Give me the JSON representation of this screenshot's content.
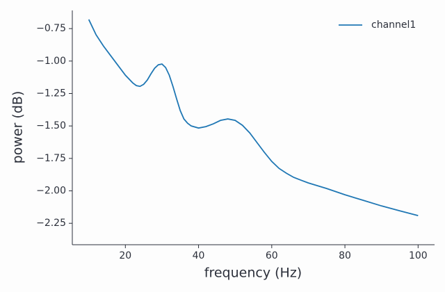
{
  "chart_data": {
    "type": "line",
    "xlabel": "frequency (Hz)",
    "ylabel": "power (dB)",
    "x": [
      10,
      12,
      14,
      16,
      18,
      20,
      22,
      23,
      24,
      25,
      26,
      27,
      28,
      29,
      30,
      31,
      32,
      33,
      34,
      35,
      36,
      37,
      38,
      40,
      42,
      44,
      46,
      48,
      50,
      52,
      54,
      56,
      58,
      60,
      62,
      64,
      66,
      68,
      70,
      75,
      80,
      85,
      90,
      95,
      100
    ],
    "series": [
      {
        "name": "channel1",
        "color": "#1f77b4",
        "values": [
          -0.68,
          -0.798,
          -0.884,
          -0.959,
          -1.034,
          -1.109,
          -1.168,
          -1.189,
          -1.195,
          -1.179,
          -1.146,
          -1.098,
          -1.055,
          -1.029,
          -1.023,
          -1.05,
          -1.109,
          -1.195,
          -1.291,
          -1.382,
          -1.446,
          -1.479,
          -1.5,
          -1.516,
          -1.505,
          -1.484,
          -1.457,
          -1.446,
          -1.457,
          -1.495,
          -1.554,
          -1.629,
          -1.704,
          -1.773,
          -1.827,
          -1.864,
          -1.896,
          -1.918,
          -1.939,
          -1.982,
          -2.03,
          -2.073,
          -2.116,
          -2.154,
          -2.191
        ]
      }
    ],
    "xlim": [
      5.5,
      104.5
    ],
    "ylim": [
      -2.415,
      -0.61
    ],
    "xticks": [
      20,
      40,
      60,
      80,
      100
    ],
    "yticks": [
      {
        "value": -0.75,
        "label": "−0.75"
      },
      {
        "value": -1.0,
        "label": "−1.00"
      },
      {
        "value": -1.25,
        "label": "−1.25"
      },
      {
        "value": -1.5,
        "label": "−1.50"
      },
      {
        "value": -1.75,
        "label": "−1.75"
      },
      {
        "value": -2.0,
        "label": "−2.00"
      },
      {
        "value": -2.25,
        "label": "−2.25"
      }
    ],
    "legend": "upper right"
  }
}
